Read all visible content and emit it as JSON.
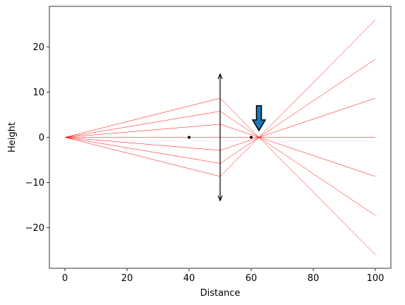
{
  "chart_data": {
    "type": "line",
    "title": "",
    "xlabel": "Distance",
    "ylabel": "Height",
    "xlim": [
      -5,
      105
    ],
    "ylim": [
      -29,
      29
    ],
    "xticks": [
      0,
      20,
      40,
      60,
      80,
      100
    ],
    "yticks": [
      -20,
      -10,
      0,
      10,
      20
    ],
    "xtick_labels": [
      "0",
      "20",
      "40",
      "60",
      "80",
      "100"
    ],
    "ytick_labels": [
      "−20",
      "−10",
      "0",
      "10",
      "20"
    ],
    "grid": false,
    "ray_color": "#ff0000",
    "source": [
      0,
      0
    ],
    "lens": {
      "x": 50,
      "y_top": 14,
      "y_bottom": -14
    },
    "focal_points": [
      [
        40,
        0
      ],
      [
        60,
        0
      ]
    ],
    "image_point": [
      62.5,
      0
    ],
    "arrow": {
      "x": 62.5,
      "y_from": 7,
      "y_to": 1.5,
      "color": "#1f77b4"
    },
    "rays": [
      {
        "lens_y": 8.66,
        "end": [
          100,
          -26.0
        ]
      },
      {
        "lens_y": 5.77,
        "end": [
          100,
          -17.3
        ]
      },
      {
        "lens_y": 2.89,
        "end": [
          100,
          -8.66
        ]
      },
      {
        "lens_y": 0,
        "end": [
          100,
          0
        ]
      },
      {
        "lens_y": -2.89,
        "end": [
          100,
          8.66
        ]
      },
      {
        "lens_y": -5.77,
        "end": [
          100,
          17.3
        ]
      },
      {
        "lens_y": -8.66,
        "end": [
          100,
          26.0
        ]
      }
    ]
  }
}
